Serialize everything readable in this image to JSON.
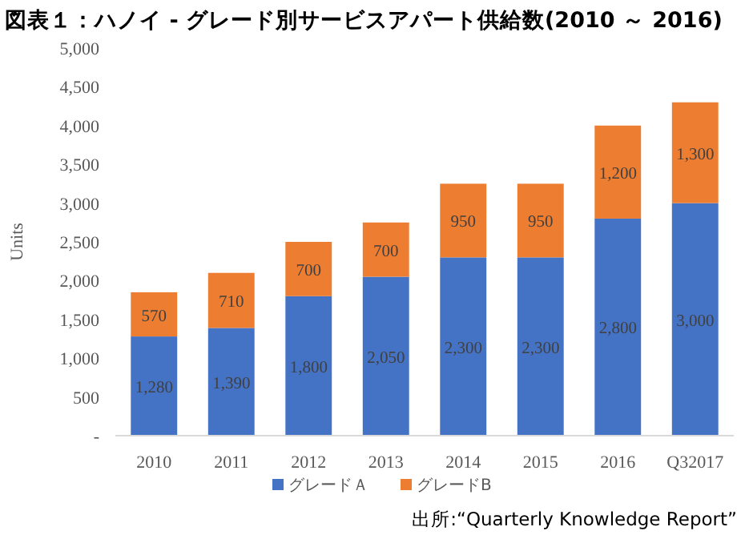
{
  "chart_data": {
    "type": "bar",
    "title": "図表１：ハノイ - グレード別サービスアパート供給数(2010 ～ 2016)",
    "ylabel": "Units",
    "categories": [
      "2010",
      "2011",
      "2012",
      "2013",
      "2014",
      "2015",
      "2016",
      "Q32017"
    ],
    "stacked": true,
    "legend": "bottom",
    "grid": false,
    "series": [
      {
        "name": "グレードＡ",
        "color": "#4472c4",
        "values": [
          1280,
          1390,
          1800,
          2050,
          2300,
          2300,
          2800,
          3000
        ],
        "value_labels": [
          "1,280",
          "1,390",
          "1,800",
          "2,050",
          "2,300",
          "2,300",
          "2,800",
          "3,000"
        ]
      },
      {
        "name": "グレードB",
        "color": "#ed7d31",
        "values": [
          570,
          710,
          700,
          700,
          950,
          950,
          1200,
          1300
        ],
        "value_labels": [
          "570",
          "710",
          "700",
          "700",
          "950",
          "950",
          "1,200",
          "1,300"
        ]
      }
    ],
    "ylim": [
      0,
      5000
    ],
    "yticks": [
      {
        "value": 0,
        "label": "-"
      },
      {
        "value": 500,
        "label": "500"
      },
      {
        "value": 1000,
        "label": "1,000"
      },
      {
        "value": 1500,
        "label": "1,500"
      },
      {
        "value": 2000,
        "label": "2,000"
      },
      {
        "value": 2500,
        "label": "2,500"
      },
      {
        "value": 3000,
        "label": "3,000"
      },
      {
        "value": 3500,
        "label": "3,500"
      },
      {
        "value": 4000,
        "label": "4,000"
      },
      {
        "value": 4500,
        "label": "4,500"
      },
      {
        "value": 5000,
        "label": "5,000"
      }
    ],
    "annotations": [
      "出所:“Quarterly Knowledge Report”"
    ]
  }
}
